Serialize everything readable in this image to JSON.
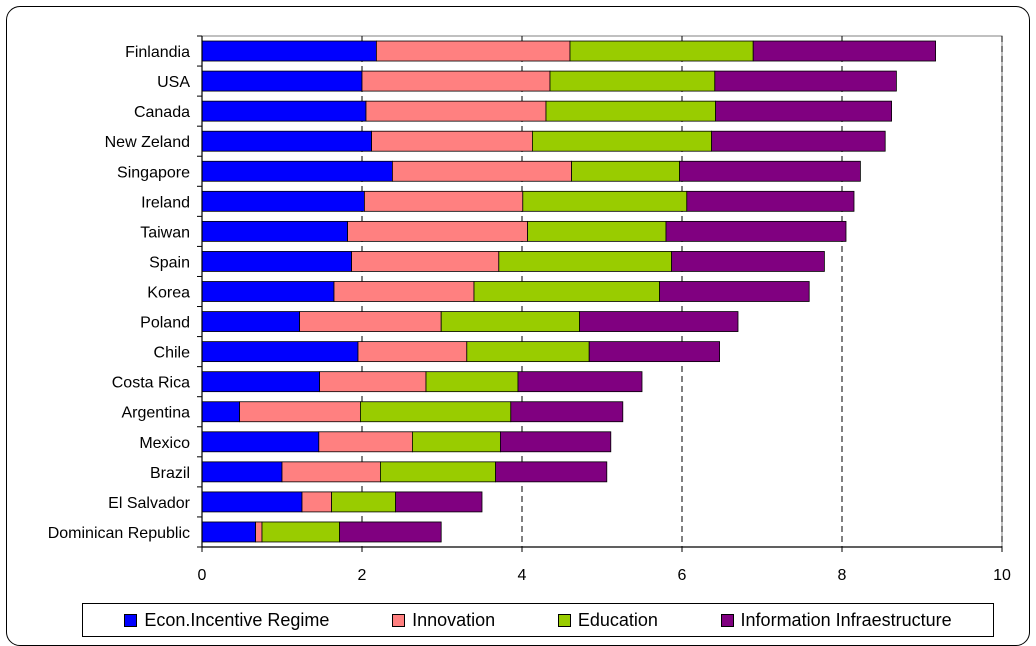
{
  "chart_data": {
    "type": "bar",
    "orientation": "horizontal",
    "stacked": true,
    "categories": [
      "Finlandia",
      "USA",
      "Canada",
      "New Zeland",
      "Singapore",
      "Ireland",
      "Taiwan",
      "Spain",
      "Korea",
      "Poland",
      "Chile",
      "Costa Rica",
      "Argentina",
      "Mexico",
      "Brazil",
      "El Salvador",
      "Dominican Republic"
    ],
    "series": [
      {
        "name": "Econ.Incentive Regime",
        "color": "#0000ff",
        "values": [
          2.18,
          2.0,
          2.05,
          2.12,
          2.38,
          2.03,
          1.82,
          1.87,
          1.65,
          1.22,
          1.95,
          1.47,
          0.47,
          1.46,
          1.0,
          1.25,
          0.67
        ]
      },
      {
        "name": "Innovation",
        "color": "#ff8080",
        "values": [
          2.42,
          2.35,
          2.25,
          2.01,
          2.24,
          1.98,
          2.25,
          1.84,
          1.75,
          1.77,
          1.36,
          1.33,
          1.51,
          1.17,
          1.23,
          0.37,
          0.08
        ]
      },
      {
        "name": "Education",
        "color": "#99cc00",
        "values": [
          2.29,
          2.06,
          2.12,
          2.24,
          1.35,
          2.05,
          1.73,
          2.16,
          2.32,
          1.73,
          1.53,
          1.15,
          1.88,
          1.1,
          1.44,
          0.8,
          0.97
        ]
      },
      {
        "name": "Information Infraestructure",
        "color": "#800080",
        "values": [
          2.28,
          2.27,
          2.2,
          2.17,
          2.26,
          2.09,
          2.25,
          1.91,
          1.87,
          1.98,
          1.63,
          1.55,
          1.4,
          1.38,
          1.39,
          1.08,
          1.27
        ]
      }
    ],
    "xlim": [
      0,
      10
    ],
    "xticks": [
      0,
      2,
      4,
      6,
      8,
      10
    ],
    "grid": "vertical dashed",
    "legend": "bottom"
  }
}
